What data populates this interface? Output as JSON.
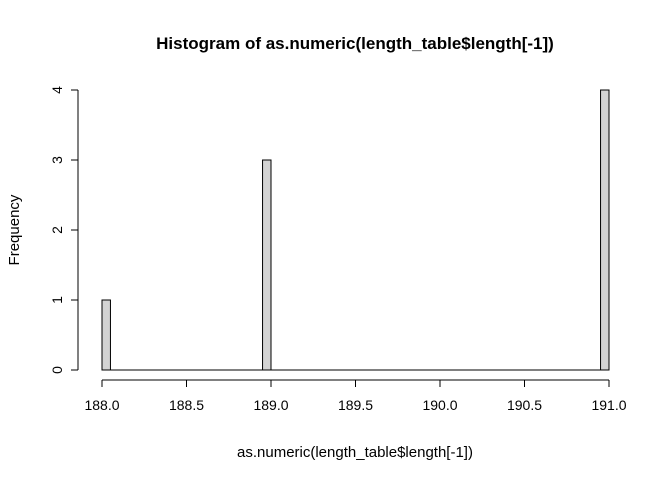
{
  "chart_data": {
    "type": "bar",
    "title": "Histogram of as.numeric(length_table$length[-1])",
    "xlabel": "as.numeric(length_table$length[-1])",
    "ylabel": "Frequency",
    "xlim": [
      188.0,
      191.0
    ],
    "ylim": [
      0,
      4
    ],
    "bin_width": 0.05,
    "bins": [
      {
        "x0": 188.0,
        "x1": 188.05,
        "count": 1
      },
      {
        "x0": 188.95,
        "x1": 189.0,
        "count": 3
      },
      {
        "x0": 190.95,
        "x1": 191.0,
        "count": 4
      }
    ],
    "x_ticks": [
      188.0,
      188.5,
      189.0,
      189.5,
      190.0,
      190.5,
      191.0
    ],
    "x_tick_labels": [
      "188.0",
      "188.5",
      "189.0",
      "189.5",
      "190.0",
      "190.5",
      "191.0"
    ],
    "y_ticks": [
      0,
      1,
      2,
      3,
      4
    ],
    "y_tick_labels": [
      "0",
      "1",
      "2",
      "3",
      "4"
    ],
    "grid": false,
    "bar_fill": "#d3d3d3",
    "bar_stroke": "#000000"
  }
}
